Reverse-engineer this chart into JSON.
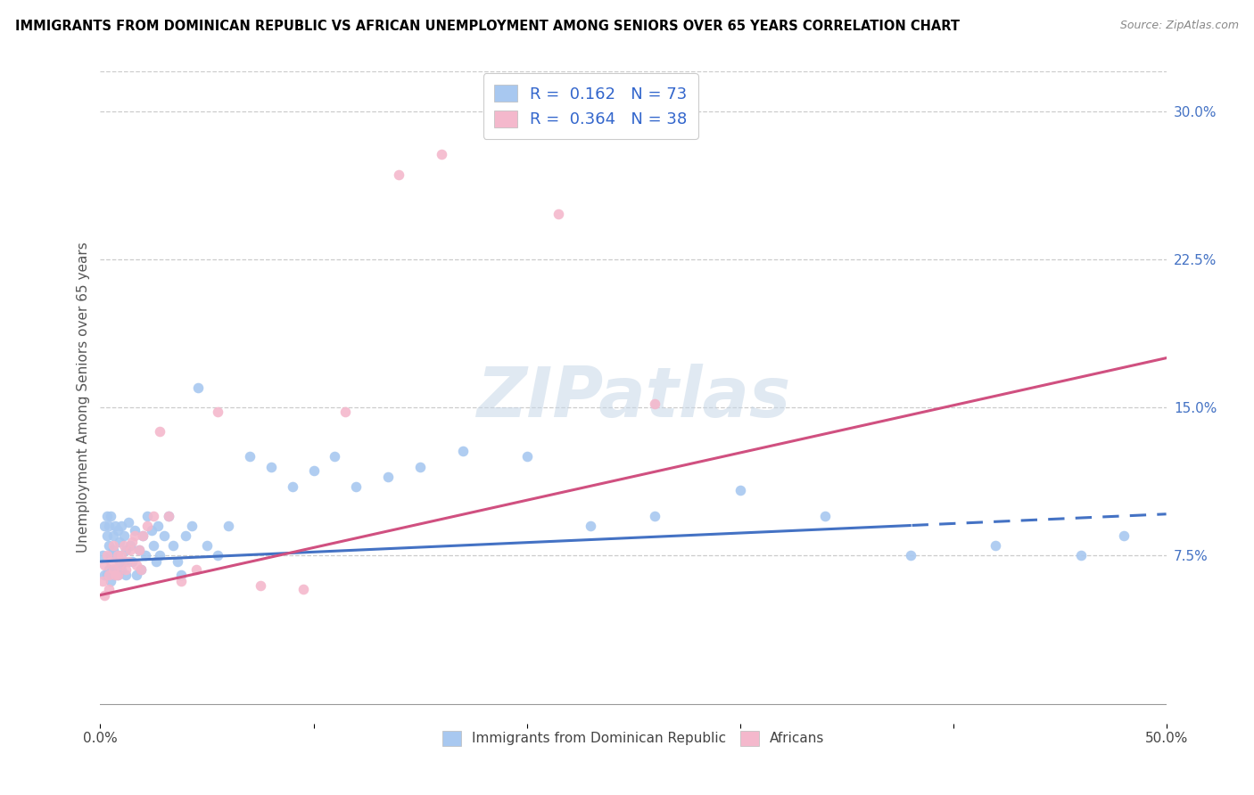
{
  "title": "IMMIGRANTS FROM DOMINICAN REPUBLIC VS AFRICAN UNEMPLOYMENT AMONG SENIORS OVER 65 YEARS CORRELATION CHART",
  "source": "Source: ZipAtlas.com",
  "ylabel": "Unemployment Among Seniors over 65 years",
  "xlim": [
    0.0,
    0.5
  ],
  "ylim": [
    -0.01,
    0.32
  ],
  "yticks_right": [
    0.075,
    0.15,
    0.225,
    0.3
  ],
  "yticklabels_right": [
    "7.5%",
    "15.0%",
    "22.5%",
    "30.0%"
  ],
  "blue_color": "#a8c8f0",
  "pink_color": "#f4b8cc",
  "blue_line_color": "#4472c4",
  "pink_line_color": "#d05080",
  "R_blue": 0.162,
  "N_blue": 73,
  "R_pink": 0.364,
  "N_pink": 38,
  "legend_label_blue": "Immigrants from Dominican Republic",
  "legend_label_pink": "Africans",
  "watermark": "ZIPatlas",
  "blue_line_x0": 0.0,
  "blue_line_y0": 0.072,
  "blue_line_x1": 0.5,
  "blue_line_y1": 0.096,
  "blue_line_solid_end": 0.38,
  "pink_line_x0": 0.0,
  "pink_line_y0": 0.055,
  "pink_line_x1": 0.5,
  "pink_line_y1": 0.175,
  "blue_scatter_x": [
    0.001,
    0.002,
    0.002,
    0.003,
    0.003,
    0.003,
    0.004,
    0.004,
    0.004,
    0.005,
    0.005,
    0.005,
    0.006,
    0.006,
    0.006,
    0.007,
    0.007,
    0.007,
    0.008,
    0.008,
    0.008,
    0.009,
    0.009,
    0.01,
    0.01,
    0.011,
    0.011,
    0.012,
    0.012,
    0.013,
    0.014,
    0.015,
    0.016,
    0.017,
    0.018,
    0.019,
    0.02,
    0.021,
    0.022,
    0.024,
    0.025,
    0.026,
    0.027,
    0.028,
    0.03,
    0.032,
    0.034,
    0.036,
    0.038,
    0.04,
    0.043,
    0.046,
    0.05,
    0.055,
    0.06,
    0.07,
    0.08,
    0.09,
    0.1,
    0.11,
    0.12,
    0.135,
    0.15,
    0.17,
    0.2,
    0.23,
    0.26,
    0.3,
    0.34,
    0.38,
    0.42,
    0.46,
    0.48
  ],
  "blue_scatter_y": [
    0.075,
    0.09,
    0.065,
    0.085,
    0.095,
    0.065,
    0.08,
    0.09,
    0.068,
    0.075,
    0.095,
    0.062,
    0.085,
    0.078,
    0.068,
    0.09,
    0.075,
    0.065,
    0.088,
    0.075,
    0.065,
    0.082,
    0.072,
    0.09,
    0.068,
    0.085,
    0.072,
    0.078,
    0.065,
    0.092,
    0.08,
    0.072,
    0.088,
    0.065,
    0.078,
    0.068,
    0.085,
    0.075,
    0.095,
    0.088,
    0.08,
    0.072,
    0.09,
    0.075,
    0.085,
    0.095,
    0.08,
    0.072,
    0.065,
    0.085,
    0.09,
    0.16,
    0.08,
    0.075,
    0.09,
    0.125,
    0.12,
    0.11,
    0.118,
    0.125,
    0.11,
    0.115,
    0.12,
    0.128,
    0.125,
    0.09,
    0.095,
    0.108,
    0.095,
    0.075,
    0.08,
    0.075,
    0.085
  ],
  "pink_scatter_x": [
    0.001,
    0.002,
    0.002,
    0.003,
    0.004,
    0.004,
    0.005,
    0.006,
    0.006,
    0.007,
    0.008,
    0.008,
    0.009,
    0.01,
    0.011,
    0.012,
    0.013,
    0.014,
    0.015,
    0.016,
    0.017,
    0.018,
    0.019,
    0.02,
    0.022,
    0.025,
    0.028,
    0.032,
    0.038,
    0.045,
    0.055,
    0.075,
    0.095,
    0.115,
    0.14,
    0.16,
    0.215,
    0.26
  ],
  "pink_scatter_y": [
    0.062,
    0.07,
    0.055,
    0.075,
    0.065,
    0.058,
    0.072,
    0.068,
    0.08,
    0.065,
    0.075,
    0.065,
    0.07,
    0.075,
    0.08,
    0.068,
    0.072,
    0.078,
    0.082,
    0.085,
    0.07,
    0.078,
    0.068,
    0.085,
    0.09,
    0.095,
    0.138,
    0.095,
    0.062,
    0.068,
    0.148,
    0.06,
    0.058,
    0.148,
    0.268,
    0.278,
    0.248,
    0.152
  ]
}
